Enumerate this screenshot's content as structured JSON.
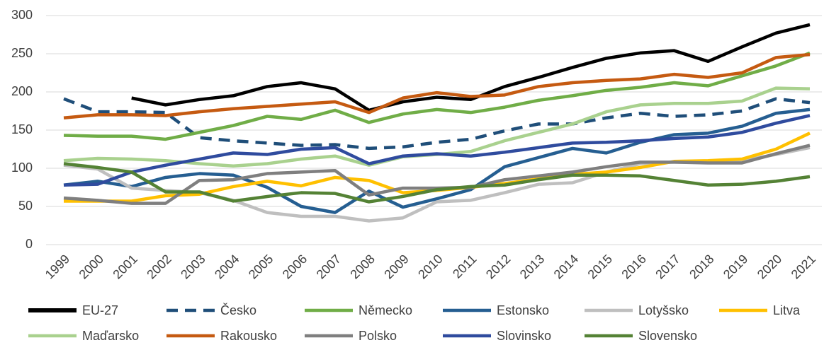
{
  "chart_data": {
    "type": "line",
    "categories": [
      "1999",
      "2000",
      "2001",
      "2002",
      "2003",
      "2004",
      "2005",
      "2006",
      "2007",
      "2008",
      "2009",
      "2010",
      "2011",
      "2012",
      "2013",
      "2014",
      "2015",
      "2016",
      "2017",
      "2018",
      "2019",
      "2020",
      "2021"
    ],
    "ylim": [
      0,
      300
    ],
    "yticks": [
      0,
      50,
      100,
      150,
      200,
      250,
      300
    ],
    "grid": true,
    "legend": "bottom",
    "series": [
      {
        "name": "EU-27",
        "color": "#000000",
        "values": [
          null,
          null,
          192,
          183,
          190,
          195,
          207,
          212,
          204,
          176,
          187,
          193,
          190,
          207,
          219,
          232,
          244,
          251,
          254,
          240,
          259,
          277,
          288
        ]
      },
      {
        "name": "Česko",
        "color": "#1f4e79",
        "dashed": true,
        "values": [
          191,
          174,
          174,
          173,
          140,
          136,
          133,
          130,
          131,
          126,
          128,
          134,
          138,
          149,
          158,
          158,
          166,
          172,
          168,
          170,
          175,
          191,
          186
        ]
      },
      {
        "name": "Německo",
        "color": "#70ad47",
        "values": [
          143,
          142,
          142,
          138,
          147,
          156,
          168,
          164,
          176,
          160,
          171,
          177,
          173,
          180,
          189,
          195,
          202,
          206,
          212,
          208,
          221,
          234,
          251
        ]
      },
      {
        "name": "Estonsko",
        "color": "#255e91",
        "values": [
          78,
          83,
          76,
          88,
          93,
          91,
          75,
          50,
          42,
          70,
          49,
          60,
          72,
          102,
          114,
          126,
          120,
          134,
          144,
          146,
          155,
          172,
          177
        ]
      },
      {
        "name": "Lotyšsko",
        "color": "#bfbfbf",
        "values": [
          104,
          99,
          74,
          71,
          68,
          58,
          42,
          37,
          37,
          31,
          35,
          56,
          58,
          68,
          79,
          81,
          95,
          106,
          108,
          108,
          110,
          118,
          127
        ]
      },
      {
        "name": "Litva",
        "color": "#ffc000",
        "values": [
          57,
          57,
          57,
          64,
          66,
          76,
          83,
          77,
          88,
          84,
          68,
          71,
          75,
          80,
          86,
          92,
          95,
          101,
          109,
          110,
          112,
          125,
          146
        ]
      },
      {
        "name": "Maďarsko",
        "color": "#a9d18e",
        "values": [
          110,
          113,
          112,
          110,
          106,
          103,
          106,
          112,
          116,
          104,
          115,
          118,
          122,
          136,
          147,
          158,
          174,
          183,
          185,
          185,
          188,
          205,
          204
        ]
      },
      {
        "name": "Rakousko",
        "color": "#c55a11",
        "values": [
          166,
          170,
          170,
          169,
          174,
          178,
          181,
          184,
          187,
          173,
          192,
          199,
          194,
          196,
          207,
          212,
          215,
          217,
          223,
          219,
          225,
          245,
          249
        ]
      },
      {
        "name": "Polsko",
        "color": "#7f7f7f",
        "values": [
          61,
          58,
          54,
          54,
          84,
          85,
          93,
          95,
          97,
          65,
          74,
          74,
          75,
          85,
          90,
          95,
          102,
          108,
          108,
          107,
          107,
          119,
          130
        ]
      },
      {
        "name": "Slovinsko",
        "color": "#2f4b9e",
        "values": [
          78,
          79,
          95,
          104,
          112,
          120,
          118,
          125,
          127,
          106,
          116,
          119,
          116,
          121,
          127,
          133,
          134,
          136,
          139,
          141,
          147,
          159,
          169
        ]
      },
      {
        "name": "Slovensko",
        "color": "#548235",
        "values": [
          106,
          101,
          95,
          69,
          69,
          57,
          63,
          68,
          67,
          56,
          63,
          72,
          76,
          78,
          85,
          91,
          91,
          90,
          84,
          78,
          79,
          83,
          89
        ]
      }
    ]
  }
}
